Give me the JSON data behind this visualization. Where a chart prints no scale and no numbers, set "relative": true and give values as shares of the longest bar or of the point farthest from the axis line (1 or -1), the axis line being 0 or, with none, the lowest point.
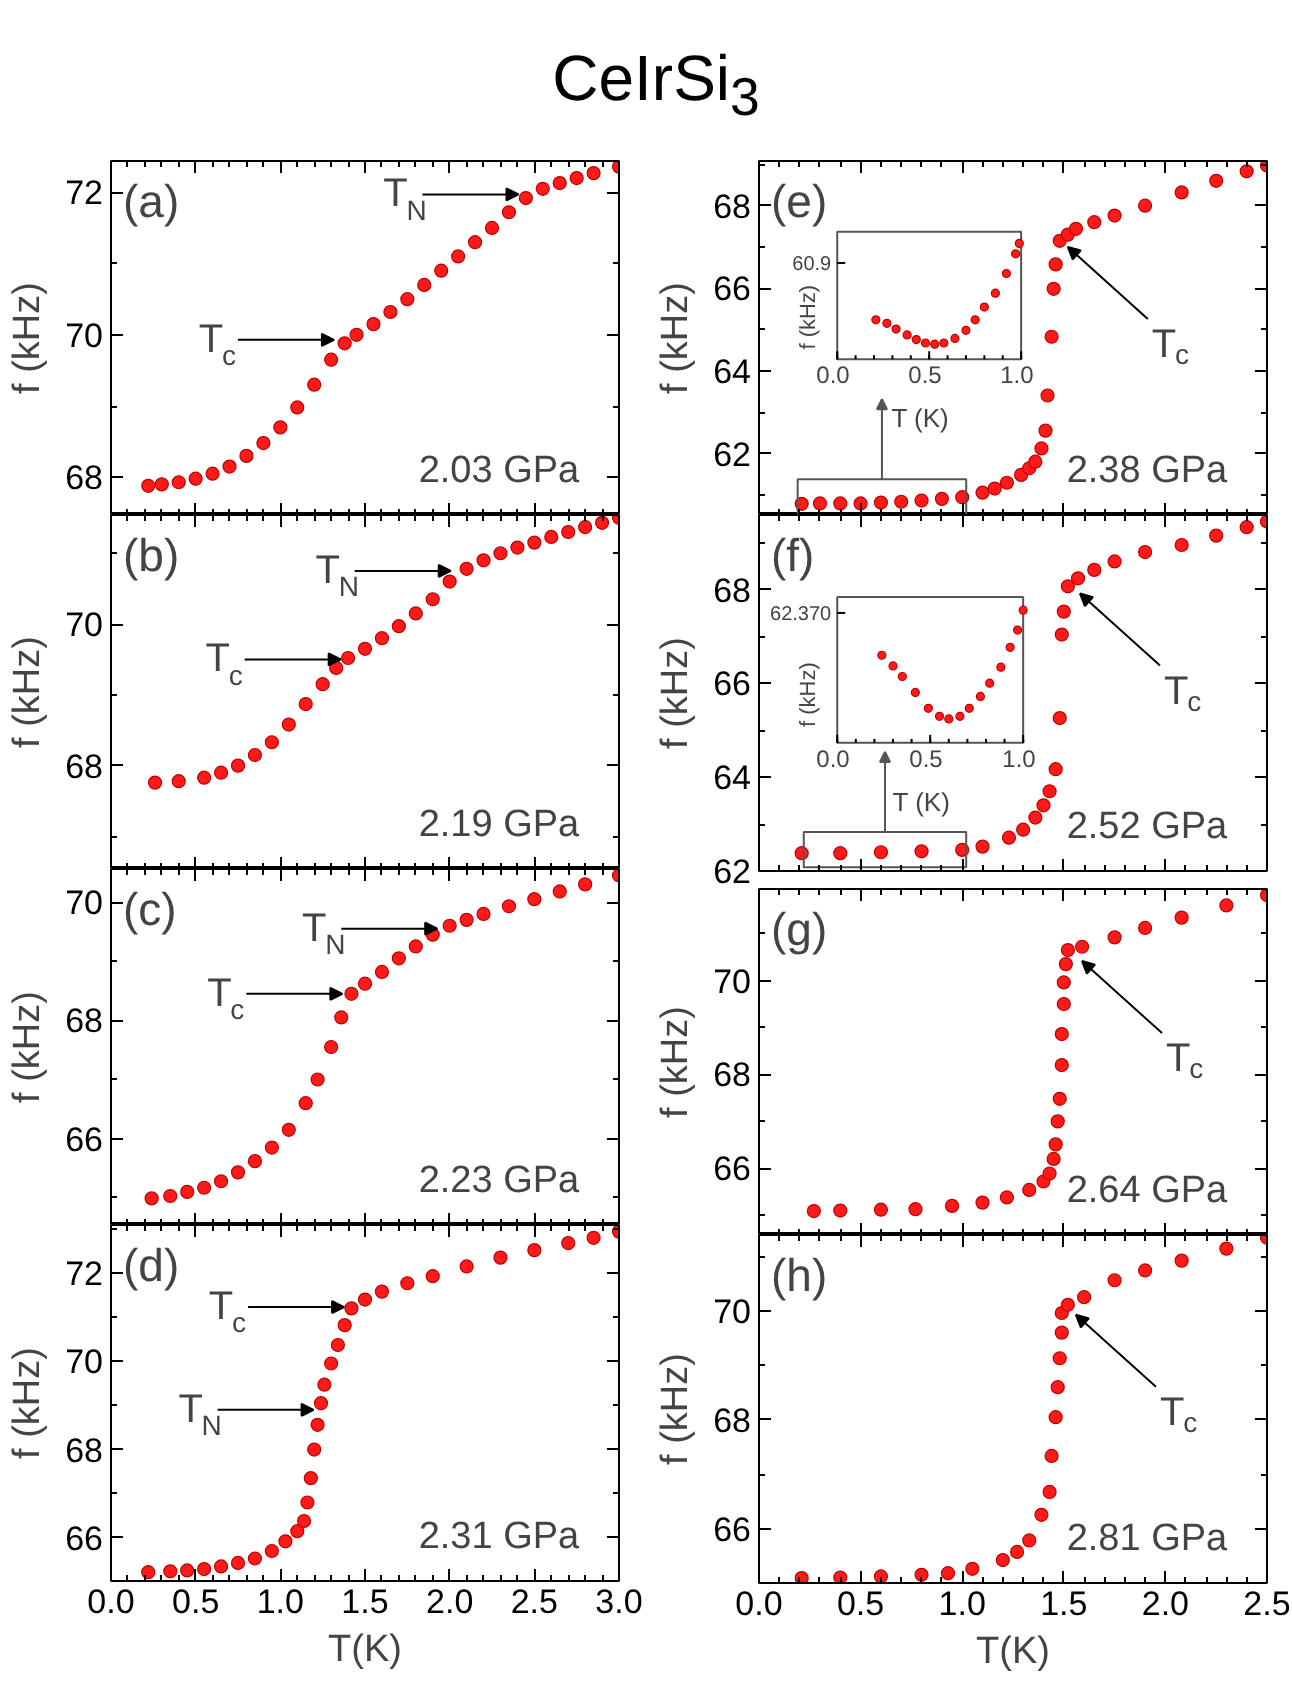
{
  "chart_data": [
    {
      "type": "scatter",
      "title": "CeIrSi$_{3}$",
      "ylabel": "f (kHz)",
      "marker": "circle",
      "color": "#ff1a1a",
      "tick_labels": "y",
      "xlim": [
        0,
        3
      ],
      "ylim": [
        67.47,
        72.44
      ],
      "xticks": [
        0,
        0.5,
        1,
        1.5,
        2,
        2.5,
        3
      ],
      "yticks": [
        68,
        70,
        72
      ],
      "x": [
        0.22,
        0.3,
        0.4,
        0.5,
        0.6,
        0.7,
        0.8,
        0.9,
        1.0,
        1.1,
        1.2,
        1.3,
        1.38,
        1.45,
        1.55,
        1.65,
        1.75,
        1.85,
        1.95,
        2.05,
        2.15,
        2.25,
        2.35,
        2.45,
        2.55,
        2.65,
        2.75,
        2.85,
        3.0
      ],
      "values": [
        67.88,
        67.9,
        67.93,
        67.98,
        68.05,
        68.15,
        68.3,
        68.48,
        68.7,
        68.98,
        69.3,
        69.65,
        69.88,
        70.0,
        70.15,
        70.32,
        70.5,
        70.7,
        70.9,
        71.1,
        71.3,
        71.5,
        71.72,
        71.92,
        72.05,
        72.13,
        72.2,
        72.27,
        72.36
      ],
      "annotations": [
        "(a)",
        "2.03 GPa",
        {
          "text": "T$_{c}$",
          "x": 1.34,
          "y": 69.93
        },
        {
          "text": "T$_{N}$",
          "x": 2.43,
          "y": 71.97
        }
      ]
    },
    {
      "type": "scatter",
      "ylabel": "f (kHz)",
      "marker": "circle",
      "color": "#ff1a1a",
      "tick_labels": "y",
      "xlim": [
        0,
        3
      ],
      "ylim": [
        66.54,
        71.54
      ],
      "xticks": [
        0,
        0.5,
        1,
        1.5,
        2,
        2.5,
        3
      ],
      "yticks": [
        68,
        70
      ],
      "x": [
        0.26,
        0.4,
        0.55,
        0.65,
        0.75,
        0.85,
        0.95,
        1.05,
        1.15,
        1.25,
        1.33,
        1.4,
        1.5,
        1.6,
        1.7,
        1.8,
        1.9,
        2.0,
        2.1,
        2.2,
        2.3,
        2.4,
        2.5,
        2.6,
        2.7,
        2.8,
        2.9,
        3.0
      ],
      "values": [
        67.76,
        67.78,
        67.83,
        67.9,
        68.0,
        68.15,
        68.33,
        68.58,
        68.87,
        69.15,
        69.38,
        69.52,
        69.65,
        69.8,
        69.97,
        70.15,
        70.35,
        70.6,
        70.78,
        70.9,
        71.0,
        71.08,
        71.15,
        71.23,
        71.3,
        71.37,
        71.43,
        71.5
      ],
      "annotations": [
        "(b)",
        "2.19 GPa",
        {
          "text": "T$_{c}$",
          "x": 1.38,
          "y": 69.5
        },
        {
          "text": "T$_{N}$",
          "x": 2.03,
          "y": 70.75
        }
      ]
    },
    {
      "type": "scatter",
      "ylabel": "f (kHz)",
      "marker": "circle",
      "color": "#ff1a1a",
      "tick_labels": "y",
      "xlim": [
        0,
        3
      ],
      "ylim": [
        64.54,
        70.56
      ],
      "xticks": [
        0,
        0.5,
        1,
        1.5,
        2,
        2.5,
        3
      ],
      "yticks": [
        66,
        68,
        70
      ],
      "x": [
        0.24,
        0.35,
        0.45,
        0.55,
        0.65,
        0.75,
        0.85,
        0.95,
        1.05,
        1.15,
        1.22,
        1.3,
        1.36,
        1.42,
        1.5,
        1.6,
        1.7,
        1.8,
        1.9,
        2.0,
        2.1,
        2.2,
        2.35,
        2.5,
        2.65,
        2.8,
        3.0
      ],
      "values": [
        64.99,
        65.03,
        65.1,
        65.17,
        65.28,
        65.43,
        65.62,
        65.85,
        66.15,
        66.6,
        67.0,
        67.55,
        68.05,
        68.45,
        68.62,
        68.82,
        69.05,
        69.25,
        69.45,
        69.6,
        69.7,
        69.8,
        69.93,
        70.05,
        70.18,
        70.3,
        70.45
      ],
      "annotations": [
        "(c)",
        "2.23 GPa",
        {
          "text": "T$_{c}$",
          "x": 1.39,
          "y": 68.45
        },
        {
          "text": "T$_{N}$",
          "x": 1.95,
          "y": 69.55
        }
      ]
    },
    {
      "type": "scatter",
      "xlabel": "T(K)",
      "ylabel": "f (kHz)",
      "marker": "circle",
      "color": "#ff1a1a",
      "xlim": [
        0,
        3
      ],
      "ylim": [
        65.02,
        73.09
      ],
      "xticks": [
        {
          "value": 0,
          "label": "0.0"
        },
        0.5,
        {
          "value": 1,
          "label": "1.0"
        },
        1.5,
        {
          "value": 2,
          "label": "2.0"
        },
        2.5,
        {
          "value": 3,
          "label": "3.0"
        }
      ],
      "yticks": [
        66,
        68,
        70,
        72
      ],
      "x": [
        0.22,
        0.35,
        0.45,
        0.55,
        0.65,
        0.75,
        0.85,
        0.95,
        1.03,
        1.1,
        1.14,
        1.16,
        1.18,
        1.2,
        1.22,
        1.24,
        1.26,
        1.3,
        1.34,
        1.38,
        1.42,
        1.5,
        1.6,
        1.75,
        1.9,
        2.1,
        2.3,
        2.5,
        2.7,
        2.85,
        3.0
      ],
      "values": [
        65.22,
        65.24,
        65.26,
        65.29,
        65.35,
        65.43,
        65.53,
        65.7,
        65.92,
        66.15,
        66.38,
        66.8,
        67.35,
        68.0,
        68.56,
        69.05,
        69.47,
        69.95,
        70.37,
        70.82,
        71.2,
        71.4,
        71.58,
        71.77,
        71.93,
        72.15,
        72.35,
        72.52,
        72.68,
        72.8,
        72.94
      ],
      "annotations": [
        "(d)",
        "2.31 GPa",
        {
          "text": "T$_{c}$",
          "x": 1.4,
          "y": 71.23
        },
        {
          "text": "T$_{N}$",
          "x": 1.22,
          "y": 68.9
        }
      ]
    },
    {
      "type": "scatter",
      "ylabel": "f (kHz)",
      "marker": "circle",
      "color": "#ff1a1a",
      "tick_labels": "y",
      "xlim": [
        0,
        2.5
      ],
      "ylim": [
        60.52,
        69.08
      ],
      "xticks": [
        0,
        0.5,
        1,
        1.5,
        2,
        2.5
      ],
      "yticks": [
        62,
        64,
        66,
        68
      ],
      "x": [
        0.21,
        0.3,
        0.4,
        0.5,
        0.6,
        0.7,
        0.8,
        0.9,
        1.0,
        1.1,
        1.16,
        1.22,
        1.29,
        1.33,
        1.36,
        1.39,
        1.41,
        1.42,
        1.44,
        1.45,
        1.46,
        1.48,
        1.52,
        1.56,
        1.65,
        1.75,
        1.9,
        2.08,
        2.25,
        2.4,
        2.5
      ],
      "values": [
        60.79,
        60.8,
        60.8,
        60.8,
        60.82,
        60.84,
        60.87,
        60.91,
        60.95,
        61.06,
        61.16,
        61.3,
        61.49,
        61.65,
        61.81,
        62.13,
        62.56,
        63.41,
        64.83,
        65.99,
        66.58,
        67.15,
        67.3,
        67.44,
        67.6,
        67.76,
        68.0,
        68.32,
        68.6,
        68.83,
        68.97
      ],
      "annotations": [
        "(e)",
        "2.38 GPa",
        {
          "text": "T$_{c}$",
          "x": 1.5,
          "y": 67.1
        }
      ]
    },
    {
      "type": "scatter",
      "relative": true,
      "xlabel": "T (K)",
      "ylabel": "f (kHz)",
      "marker": "circle",
      "color": "#ff1a1a",
      "xlim": [
        0,
        1
      ],
      "xticks": [
        {
          "value": 0,
          "label": "0.0"
        },
        0.5,
        {
          "value": 1,
          "label": "1.0"
        }
      ],
      "annotations": [
        "60.9"
      ],
      "x": [
        0.21,
        0.27,
        0.32,
        0.38,
        0.43,
        0.48,
        0.53,
        0.58,
        0.64,
        0.7,
        0.75,
        0.8,
        0.86,
        0.92,
        0.97,
        0.99
      ],
      "values": [
        0.34,
        0.31,
        0.26,
        0.21,
        0.17,
        0.14,
        0.13,
        0.14,
        0.18,
        0.25,
        0.34,
        0.45,
        0.57,
        0.74,
        0.91,
        1.0
      ]
    },
    {
      "type": "scatter",
      "ylabel": "f (kHz)",
      "marker": "circle",
      "color": "#ff1a1a",
      "tick_labels": "y",
      "xlim": [
        0,
        2.5
      ],
      "ylim": [
        62,
        69.59
      ],
      "xticks": [
        0,
        0.5,
        1,
        1.5,
        2,
        2.5
      ],
      "yticks": [
        62,
        64,
        66,
        68
      ],
      "x": [
        0.21,
        0.4,
        0.6,
        0.8,
        1.0,
        1.1,
        1.23,
        1.3,
        1.36,
        1.4,
        1.43,
        1.46,
        1.48,
        1.49,
        1.5,
        1.52,
        1.57,
        1.65,
        1.75,
        1.9,
        2.08,
        2.25,
        2.4,
        2.5
      ],
      "values": [
        62.38,
        62.38,
        62.4,
        62.42,
        62.45,
        62.52,
        62.71,
        62.88,
        63.14,
        63.4,
        63.7,
        64.17,
        65.26,
        67.04,
        67.53,
        68.07,
        68.24,
        68.42,
        68.6,
        68.8,
        68.95,
        69.15,
        69.33,
        69.45
      ],
      "annotations": [
        "(f)",
        "2.52 GPa",
        {
          "text": "T$_{c}$",
          "x": 1.56,
          "y": 68.0
        }
      ]
    },
    {
      "type": "scatter",
      "relative": true,
      "xlabel": "T (K)",
      "ylabel": "f (kHz)",
      "marker": "circle",
      "color": "#ff1a1a",
      "xlim": [
        0,
        1
      ],
      "xticks": [
        {
          "value": 0,
          "label": "0.0"
        },
        0.5,
        {
          "value": 1,
          "label": "1.0"
        }
      ],
      "annotations": [
        "62.370"
      ],
      "x": [
        0.24,
        0.3,
        0.35,
        0.42,
        0.49,
        0.55,
        0.6,
        0.66,
        0.71,
        0.77,
        0.82,
        0.88,
        0.93,
        0.97,
        1.0
      ],
      "values": [
        0.66,
        0.58,
        0.5,
        0.38,
        0.26,
        0.2,
        0.18,
        0.2,
        0.26,
        0.35,
        0.45,
        0.57,
        0.72,
        0.85,
        1.0
      ]
    },
    {
      "type": "scatter",
      "ylabel": "f (kHz)",
      "marker": "circle",
      "color": "#ff1a1a",
      "tick_labels": "y",
      "xlim": [
        0,
        2.5
      ],
      "ylim": [
        64.58,
        71.95
      ],
      "xticks": [
        0,
        0.5,
        1,
        1.5,
        2,
        2.5
      ],
      "yticks": [
        66,
        68,
        70
      ],
      "x": [
        0.27,
        0.4,
        0.6,
        0.77,
        0.95,
        1.1,
        1.22,
        1.33,
        1.4,
        1.43,
        1.45,
        1.46,
        1.47,
        1.48,
        1.49,
        1.49,
        1.5,
        1.5,
        1.51,
        1.52,
        1.59,
        1.75,
        1.9,
        2.08,
        2.3,
        2.5
      ],
      "values": [
        65.09,
        65.1,
        65.12,
        65.13,
        65.2,
        65.27,
        65.38,
        65.54,
        65.72,
        65.89,
        66.2,
        66.51,
        67.0,
        67.48,
        68.2,
        68.86,
        69.5,
        69.96,
        70.35,
        70.65,
        70.72,
        70.92,
        71.12,
        71.34,
        71.6,
        71.82
      ],
      "annotations": [
        "(g)",
        "2.64 GPa",
        {
          "text": "T$_{c}$",
          "x": 1.57,
          "y": 70.5
        }
      ]
    },
    {
      "type": "scatter",
      "xlabel": "T(K)",
      "ylabel": "f (kHz)",
      "marker": "circle",
      "color": "#ff1a1a",
      "xlim": [
        0,
        2.5
      ],
      "ylim": [
        65.01,
        71.39
      ],
      "xticks": [
        {
          "value": 0,
          "label": "0.0"
        },
        0.5,
        {
          "value": 1,
          "label": "1.0"
        },
        1.5,
        {
          "value": 2,
          "label": "2.0"
        },
        2.5
      ],
      "yticks": [
        66,
        68,
        70
      ],
      "x": [
        0.21,
        0.4,
        0.6,
        0.8,
        0.93,
        1.05,
        1.2,
        1.27,
        1.33,
        1.39,
        1.43,
        1.44,
        1.46,
        1.47,
        1.48,
        1.49,
        1.49,
        1.52,
        1.6,
        1.75,
        1.9,
        2.08,
        2.3,
        2.5
      ],
      "values": [
        65.1,
        65.11,
        65.13,
        65.16,
        65.19,
        65.27,
        65.43,
        65.58,
        65.79,
        66.26,
        66.68,
        67.34,
        68.05,
        68.6,
        69.13,
        69.6,
        69.96,
        70.11,
        70.25,
        70.56,
        70.74,
        70.92,
        71.14,
        71.34
      ],
      "annotations": [
        "(h)",
        "2.81 GPa",
        {
          "text": "T$_{c}$",
          "x": 1.54,
          "y": 70.0
        }
      ]
    }
  ]
}
